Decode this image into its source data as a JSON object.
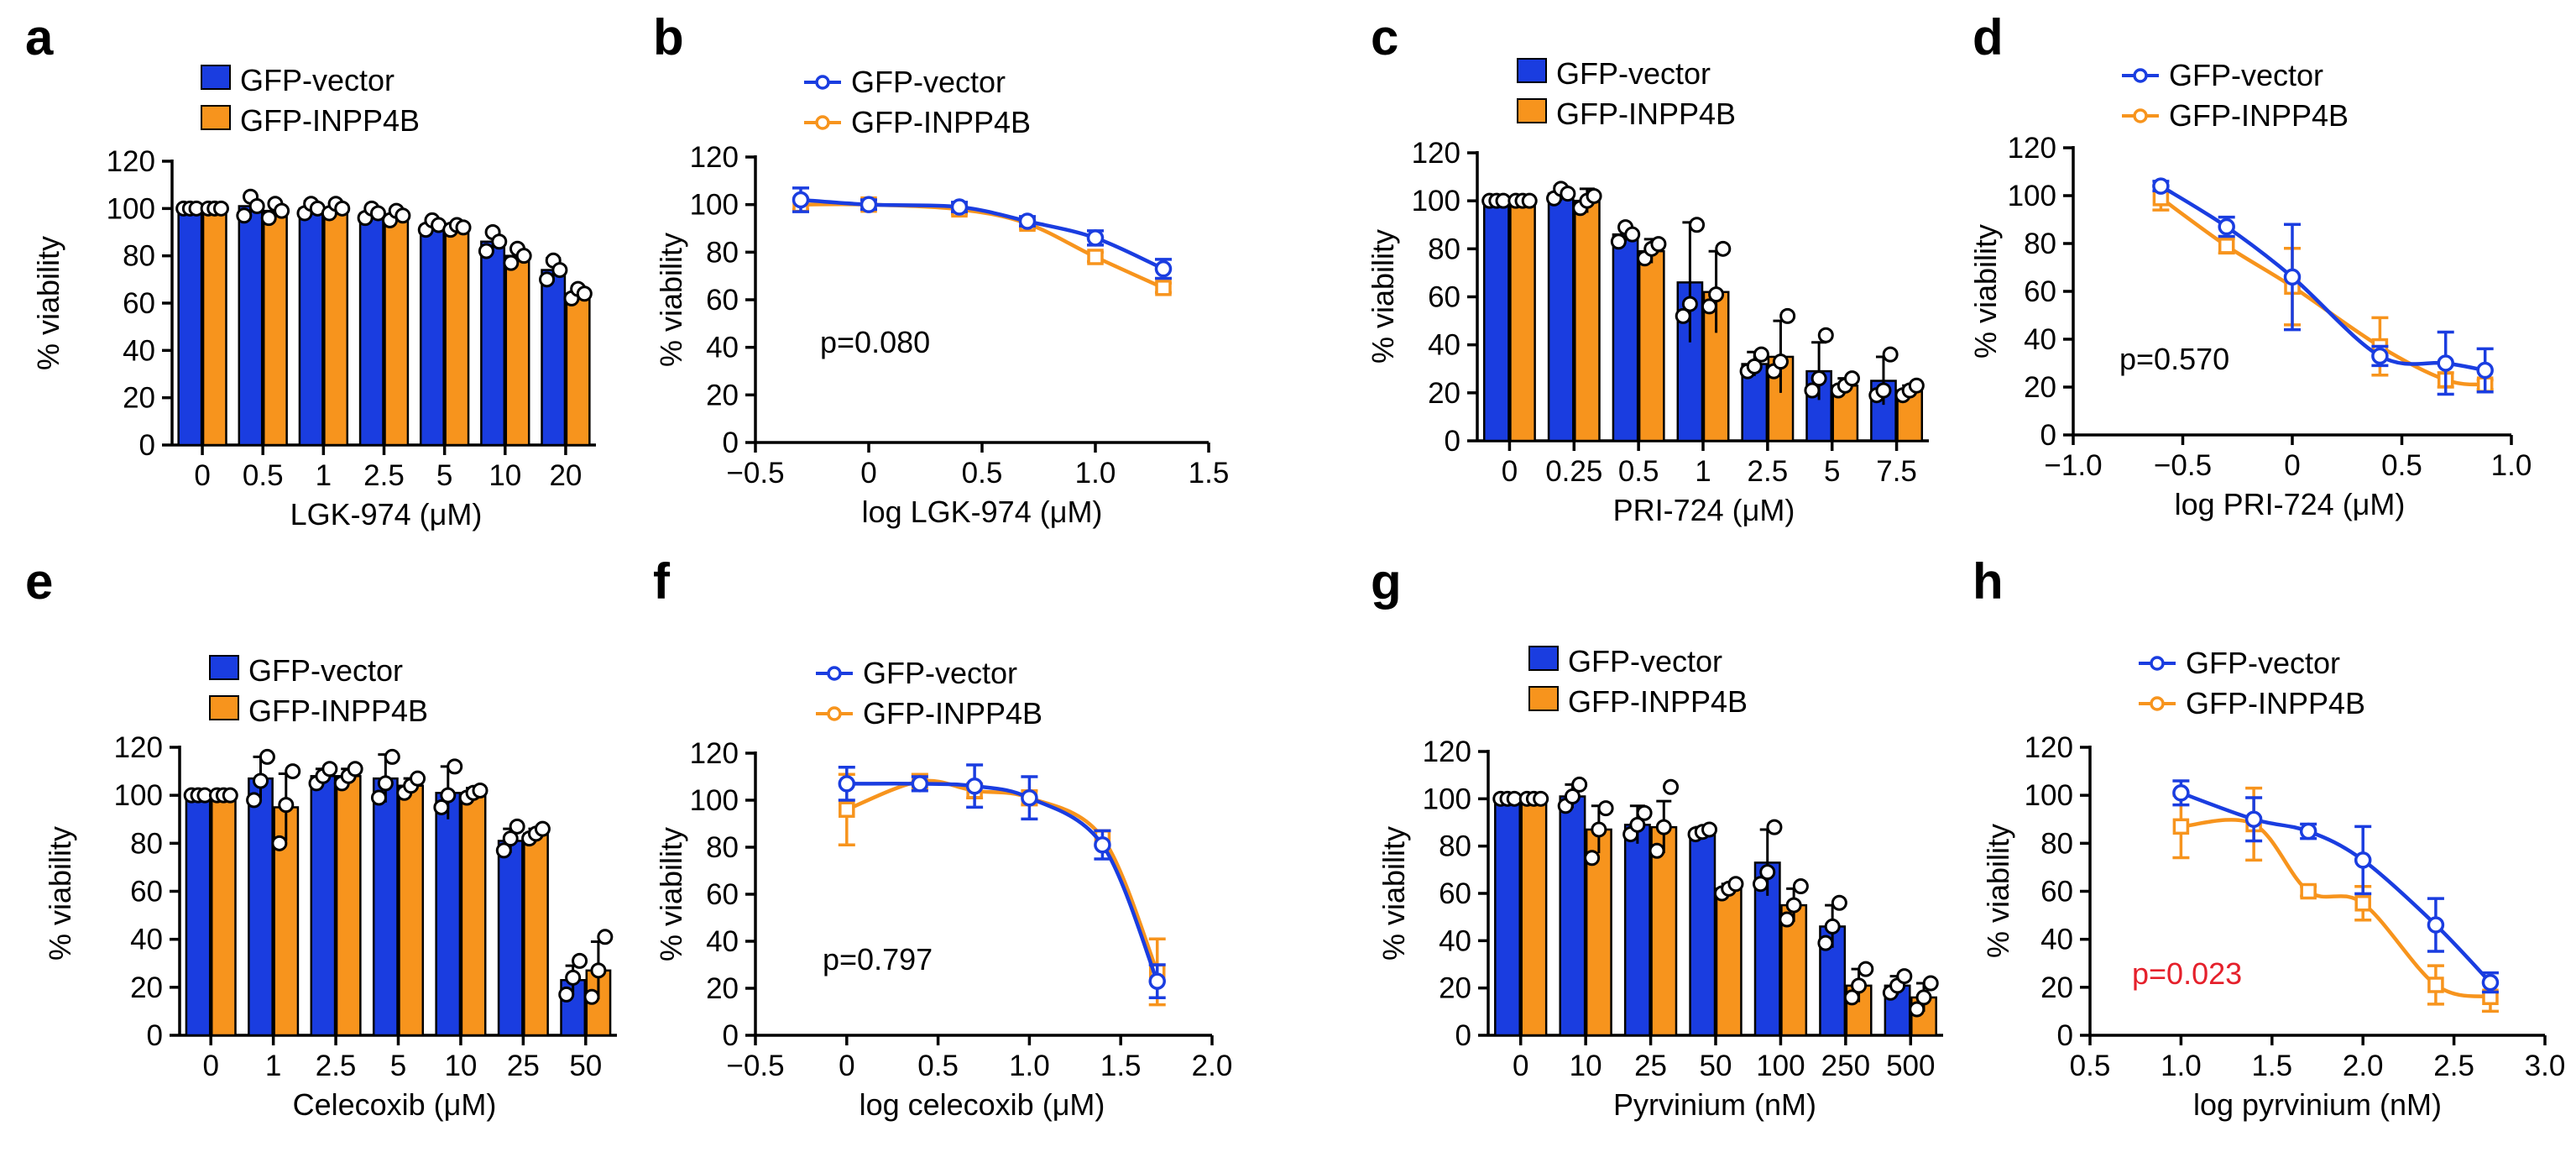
{
  "colors": {
    "vector": "#1a3de0",
    "inpp4b": "#f7941d",
    "axis": "#000000",
    "pval_sig": "#e5202b",
    "pval_ns": "#000000"
  },
  "legend": {
    "vector": "GFP-vector",
    "inpp4b": "GFP-INPP4B"
  },
  "chart_data": [
    {
      "id": "a",
      "letter": "a",
      "type": "bar",
      "title": "",
      "xlabel": "LGK-974 (μM)",
      "ylabel": "% viability",
      "ylim": [
        0,
        120
      ],
      "yticks": [
        0,
        20,
        40,
        60,
        80,
        100,
        120
      ],
      "categories": [
        "0",
        "0.5",
        "1",
        "2.5",
        "5",
        "10",
        "20"
      ],
      "series": [
        {
          "name": "GFP-vector",
          "key": "vector",
          "values": [
            100,
            101,
            100,
            98,
            93,
            86,
            74
          ],
          "err": [
            0,
            4,
            3,
            2,
            2,
            4,
            5
          ],
          "points": [
            [
              100,
              100,
              100
            ],
            [
              97,
              105,
              101
            ],
            [
              98,
              102,
              100
            ],
            [
              96,
              100,
              98
            ],
            [
              91,
              95,
              93
            ],
            [
              82,
              90,
              86
            ],
            [
              70,
              78,
              74
            ]
          ]
        },
        {
          "name": "GFP-INPP4B",
          "key": "inpp4b",
          "values": [
            100,
            99,
            100,
            97,
            92,
            80,
            64
          ],
          "err": [
            0,
            3,
            2,
            2,
            1,
            3,
            2
          ],
          "points": [
            [
              100,
              100,
              100
            ],
            [
              96,
              102,
              99
            ],
            [
              98,
              102,
              100
            ],
            [
              95,
              99,
              97
            ],
            [
              91,
              93,
              92
            ],
            [
              77,
              83,
              80
            ],
            [
              62,
              66,
              64
            ]
          ]
        }
      ]
    },
    {
      "id": "b",
      "letter": "b",
      "type": "line",
      "xlabel": "log LGK-974 (μM)",
      "ylabel": "% viability",
      "xlim": [
        -0.5,
        1.5
      ],
      "xticks": [
        "−0.5",
        "0",
        "0.5",
        "1.0",
        "1.5"
      ],
      "xtick_values": [
        -0.5,
        0,
        0.5,
        1.0,
        1.5
      ],
      "ylim": [
        0,
        120
      ],
      "yticks": [
        0,
        20,
        40,
        60,
        80,
        100,
        120
      ],
      "pvalue": "p=0.080",
      "pvalue_sig": false,
      "series": [
        {
          "name": "GFP-vector",
          "key": "vector",
          "x": [
            -0.3,
            0,
            0.4,
            0.7,
            1.0,
            1.3
          ],
          "y": [
            102,
            100,
            99,
            93,
            86,
            73
          ],
          "err": [
            5,
            2,
            2,
            2,
            3,
            4
          ],
          "marker": "circle"
        },
        {
          "name": "GFP-INPP4B",
          "key": "inpp4b",
          "x": [
            -0.3,
            0,
            0.4,
            0.7,
            1.0,
            1.3
          ],
          "y": [
            100,
            100,
            98,
            92,
            78,
            65
          ],
          "err": [
            2,
            2,
            2,
            2,
            2,
            2
          ],
          "marker": "square"
        }
      ]
    },
    {
      "id": "c",
      "letter": "c",
      "type": "bar",
      "xlabel": "PRI-724 (μM)",
      "ylabel": "% viability",
      "ylim": [
        0,
        120
      ],
      "yticks": [
        0,
        20,
        40,
        60,
        80,
        100,
        120
      ],
      "categories": [
        "0",
        "0.25",
        "0.5",
        "1",
        "2.5",
        "5",
        "7.5"
      ],
      "series": [
        {
          "name": "GFP-vector",
          "key": "vector",
          "values": [
            100,
            103,
            86,
            66,
            32,
            29,
            25
          ],
          "err": [
            0,
            3,
            3,
            25,
            5,
            12,
            10
          ],
          "points": [
            [
              100,
              100,
              100
            ],
            [
              101,
              105,
              103
            ],
            [
              83,
              89,
              86
            ],
            [
              52,
              57,
              90
            ],
            [
              29,
              31,
              36
            ],
            [
              21,
              26,
              44
            ],
            [
              19,
              21,
              36
            ]
          ]
        },
        {
          "name": "GFP-INPP4B",
          "key": "inpp4b",
          "values": [
            100,
            100,
            79,
            62,
            35,
            23,
            21
          ],
          "err": [
            0,
            5,
            5,
            17,
            15,
            3,
            2
          ],
          "points": [
            [
              100,
              100,
              100
            ],
            [
              97,
              100,
              102
            ],
            [
              76,
              80,
              82
            ],
            [
              56,
              61,
              80
            ],
            [
              29,
              33,
              52
            ],
            [
              21,
              23,
              26
            ],
            [
              19,
              21,
              23
            ]
          ]
        }
      ]
    },
    {
      "id": "d",
      "letter": "d",
      "type": "line",
      "xlabel": "log PRI-724 (μM)",
      "ylabel": "% viability",
      "xlim": [
        -1.0,
        1.0
      ],
      "xticks": [
        "−1.0",
        "−0.5",
        "0",
        "0.5",
        "1.0"
      ],
      "xtick_values": [
        -1.0,
        -0.5,
        0,
        0.5,
        1.0
      ],
      "ylim": [
        0,
        120
      ],
      "yticks": [
        0,
        20,
        40,
        60,
        80,
        100,
        120
      ],
      "pvalue": "p=0.570",
      "pvalue_sig": false,
      "series": [
        {
          "name": "GFP-vector",
          "key": "vector",
          "x": [
            -0.6,
            -0.3,
            0,
            0.4,
            0.7,
            0.88
          ],
          "y": [
            104,
            87,
            66,
            33,
            30,
            27
          ],
          "err": [
            2,
            4,
            22,
            4,
            13,
            9
          ],
          "marker": "circle"
        },
        {
          "name": "GFP-INPP4B",
          "key": "inpp4b",
          "x": [
            -0.6,
            -0.3,
            0,
            0.4,
            0.7,
            0.88
          ],
          "y": [
            99,
            79,
            62,
            37,
            23,
            21
          ],
          "err": [
            5,
            3,
            16,
            12,
            3,
            2
          ],
          "marker": "square"
        }
      ]
    },
    {
      "id": "e",
      "letter": "e",
      "type": "bar",
      "xlabel": "Celecoxib (μM)",
      "ylabel": "% viability",
      "ylim": [
        0,
        120
      ],
      "yticks": [
        0,
        20,
        40,
        60,
        80,
        100,
        120
      ],
      "categories": [
        "0",
        "1",
        "2.5",
        "5",
        "10",
        "25",
        "50"
      ],
      "series": [
        {
          "name": "GFP-vector",
          "key": "vector",
          "values": [
            100,
            107,
            108,
            107,
            101,
            81,
            23
          ],
          "err": [
            0,
            9,
            3,
            10,
            11,
            5,
            6
          ],
          "points": [
            [
              100,
              100,
              100
            ],
            [
              98,
              106,
              116
            ],
            [
              105,
              108,
              111
            ],
            [
              99,
              105,
              116
            ],
            [
              95,
              100,
              112
            ],
            [
              77,
              82,
              87
            ],
            [
              17,
              24,
              31
            ]
          ]
        },
        {
          "name": "GFP-INPP4B",
          "key": "inpp4b",
          "values": [
            100,
            95,
            108,
            104,
            101,
            84,
            27
          ],
          "err": [
            0,
            14,
            3,
            3,
            2,
            2,
            12
          ],
          "points": [
            [
              100,
              100,
              100
            ],
            [
              80,
              96,
              110
            ],
            [
              105,
              108,
              111
            ],
            [
              101,
              104,
              107
            ],
            [
              99,
              101,
              102
            ],
            [
              82,
              84,
              86
            ],
            [
              16,
              27,
              41
            ]
          ]
        }
      ]
    },
    {
      "id": "f",
      "letter": "f",
      "type": "line",
      "xlabel": "log celecoxib (μM)",
      "ylabel": "% viability",
      "xlim": [
        -0.5,
        2.0
      ],
      "xticks": [
        "−0.5",
        "0",
        "0.5",
        "1.0",
        "1.5",
        "2.0"
      ],
      "xtick_values": [
        -0.5,
        0,
        0.5,
        1.0,
        1.5,
        2.0
      ],
      "ylim": [
        0,
        120
      ],
      "yticks": [
        0,
        20,
        40,
        60,
        80,
        100,
        120
      ],
      "pvalue": "p=0.797",
      "pvalue_sig": false,
      "series": [
        {
          "name": "GFP-vector",
          "key": "vector",
          "x": [
            0,
            0.4,
            0.7,
            1.0,
            1.4,
            1.7
          ],
          "y": [
            107,
            107,
            106,
            101,
            81,
            23
          ],
          "err": [
            7,
            3,
            9,
            9,
            6,
            7
          ],
          "marker": "circle"
        },
        {
          "name": "GFP-INPP4B",
          "key": "inpp4b",
          "x": [
            0,
            0.4,
            0.7,
            1.0,
            1.4,
            1.7
          ],
          "y": [
            96,
            108,
            104,
            101,
            84,
            27
          ],
          "err": [
            15,
            3,
            3,
            3,
            3,
            14
          ],
          "marker": "square"
        }
      ]
    },
    {
      "id": "g",
      "letter": "g",
      "type": "bar",
      "xlabel": "Pyrvinium (nM)",
      "ylabel": "% viability",
      "ylim": [
        0,
        120
      ],
      "yticks": [
        0,
        20,
        40,
        60,
        80,
        100,
        120
      ],
      "categories": [
        "0",
        "10",
        "25",
        "50",
        "100",
        "250",
        "500"
      ],
      "series": [
        {
          "name": "GFP-vector",
          "key": "vector",
          "values": [
            100,
            101,
            89,
            86,
            73,
            46,
            21
          ],
          "err": [
            0,
            5,
            8,
            2,
            14,
            9,
            4
          ],
          "points": [
            [
              100,
              100,
              100
            ],
            [
              97,
              101,
              106
            ],
            [
              85,
              89,
              94
            ],
            [
              85,
              86,
              87
            ],
            [
              64,
              69,
              88
            ],
            [
              39,
              46,
              56
            ],
            [
              18,
              21,
              25
            ]
          ]
        },
        {
          "name": "GFP-INPP4B",
          "key": "inpp4b",
          "values": [
            100,
            87,
            88,
            62,
            55,
            21,
            16
          ],
          "err": [
            0,
            10,
            11,
            2,
            7,
            7,
            6
          ],
          "points": [
            [
              100,
              100,
              100
            ],
            [
              75,
              87,
              96
            ],
            [
              78,
              88,
              105
            ],
            [
              60,
              62,
              64
            ],
            [
              49,
              55,
              63
            ],
            [
              16,
              21,
              28
            ],
            [
              11,
              16,
              22
            ]
          ]
        }
      ]
    },
    {
      "id": "h",
      "letter": "h",
      "type": "line",
      "xlabel": "log pyrvinium (nM)",
      "ylabel": "% viability",
      "xlim": [
        0.5,
        3.0
      ],
      "xticks": [
        "0.5",
        "1.0",
        "1.5",
        "2.0",
        "2.5",
        "3.0"
      ],
      "xtick_values": [
        0.5,
        1.0,
        1.5,
        2.0,
        2.5,
        3.0
      ],
      "ylim": [
        0,
        120
      ],
      "yticks": [
        0,
        20,
        40,
        60,
        80,
        100,
        120
      ],
      "pvalue": "p=0.023",
      "pvalue_sig": true,
      "series": [
        {
          "name": "GFP-vector",
          "key": "vector",
          "x": [
            1.0,
            1.4,
            1.7,
            2.0,
            2.4,
            2.7
          ],
          "y": [
            101,
            90,
            85,
            73,
            46,
            22
          ],
          "err": [
            5,
            9,
            3,
            14,
            11,
            4
          ],
          "marker": "circle"
        },
        {
          "name": "GFP-INPP4B",
          "key": "inpp4b",
          "x": [
            1.0,
            1.4,
            1.7,
            2.0,
            2.4,
            2.7
          ],
          "y": [
            87,
            88,
            60,
            55,
            21,
            16
          ],
          "err": [
            13,
            15,
            2,
            7,
            8,
            6
          ],
          "marker": "square"
        }
      ]
    }
  ]
}
